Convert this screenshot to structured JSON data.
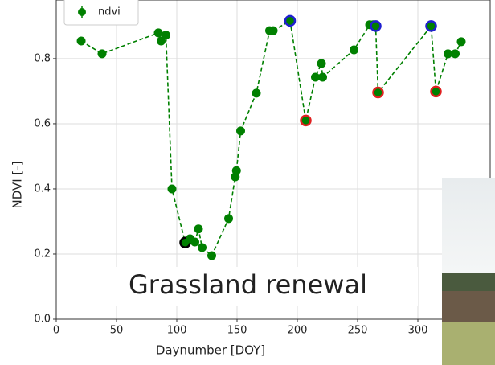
{
  "chart_data": {
    "type": "scatter-line",
    "xlabel": "Daynumber [DOY]",
    "ylabel": "NDVI [-]",
    "annotation": "Grassland renewal",
    "legend": "upper left",
    "grid": true,
    "xlim": [
      0,
      360
    ],
    "ylim": [
      0,
      0.98
    ],
    "xticks": [
      0,
      50,
      100,
      150,
      200,
      250,
      300
    ],
    "yticks": [
      {
        "value": 0,
        "label": "0.0"
      },
      0.2,
      0.4,
      0.6,
      0.8
    ],
    "series": [
      {
        "name": "ndvi",
        "color": "#008000",
        "x": [
          20.7,
          38,
          84.7,
          87,
          91,
          96,
          107,
          111,
          115,
          118,
          121,
          129,
          143,
          148.5,
          149.5,
          153,
          166,
          177,
          180,
          194,
          207,
          215,
          220,
          221,
          247,
          260,
          263,
          265,
          267,
          311,
          315,
          325,
          331,
          336
        ],
        "values": [
          0.854,
          0.815,
          0.879,
          0.854,
          0.872,
          0.4,
          0.235,
          0.247,
          0.237,
          0.277,
          0.22,
          0.195,
          0.309,
          0.437,
          0.456,
          0.578,
          0.694,
          0.886,
          0.886,
          0.916,
          0.61,
          0.743,
          0.785,
          0.743,
          0.827,
          0.904,
          0.904,
          0.9,
          0.696,
          0.9,
          0.699,
          0.815,
          0.815,
          0.852
        ],
        "edgecolors": [
          null,
          null,
          null,
          null,
          null,
          null,
          "#000000",
          null,
          null,
          null,
          null,
          null,
          null,
          null,
          null,
          null,
          null,
          null,
          null,
          "#1f1fd0",
          "#e02020",
          null,
          null,
          null,
          null,
          null,
          null,
          "#1f1fd0",
          "#e02020",
          "#1f1fd0",
          "#e02020",
          null,
          null,
          null
        ]
      }
    ]
  }
}
